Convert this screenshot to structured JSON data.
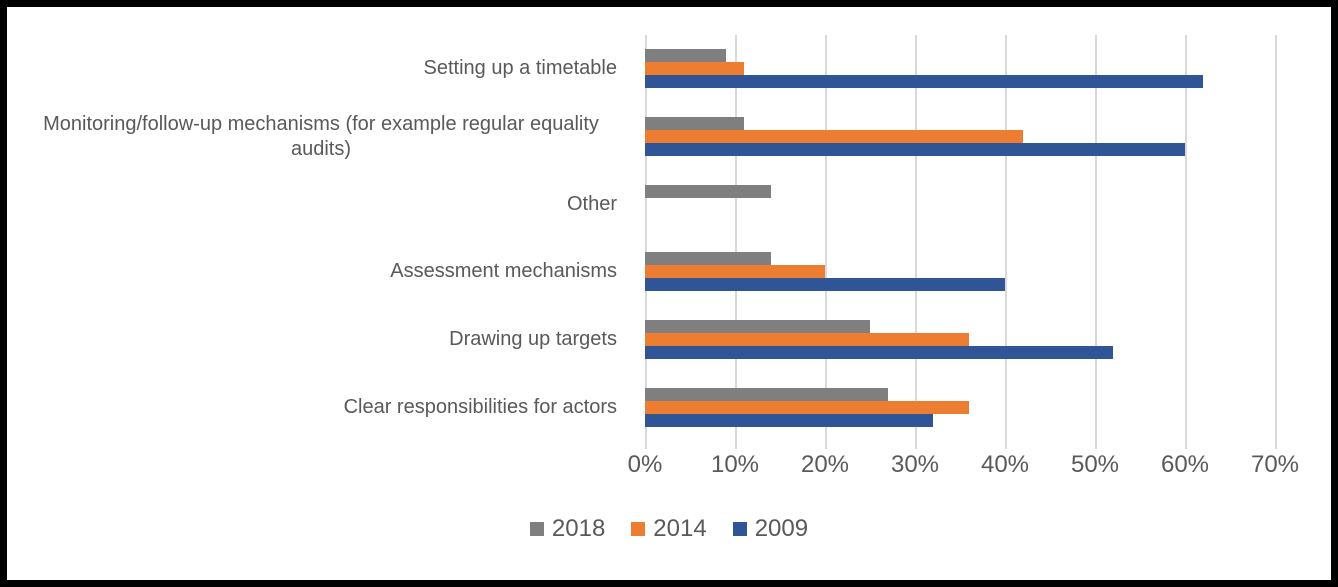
{
  "chart_data": {
    "type": "bar",
    "orientation": "horizontal",
    "title": "",
    "xlabel": "",
    "ylabel": "",
    "categories": [
      "Setting up a timetable",
      "Monitoring/follow-up mechanisms (for example regular equality audits)",
      "Other",
      "Assessment mechanisms",
      "Drawing up targets",
      "Clear responsibilities for actors"
    ],
    "series": [
      {
        "name": "2018",
        "color": "#7F7F7F",
        "values": [
          9,
          11,
          14,
          14,
          25,
          27
        ]
      },
      {
        "name": "2014",
        "color": "#ED7D31",
        "values": [
          11,
          42,
          0,
          20,
          36,
          36
        ]
      },
      {
        "name": "2009",
        "color": "#2F5597",
        "values": [
          62,
          60,
          0,
          40,
          52,
          32
        ]
      }
    ],
    "x_axis": {
      "unit": "%",
      "min": 0,
      "max": 70,
      "tick_step": 10,
      "tick_labels": [
        "0%",
        "10%",
        "20%",
        "30%",
        "40%",
        "50%",
        "60%",
        "70%"
      ]
    },
    "grid": "vertical",
    "gridline_color": "#D9D9D9",
    "text_color": "#595959",
    "legend_position": "bottom",
    "legend_items": [
      "2018",
      "2014",
      "2009"
    ],
    "frame_border_color": "#000000",
    "background_color": "#FFFFFF"
  }
}
